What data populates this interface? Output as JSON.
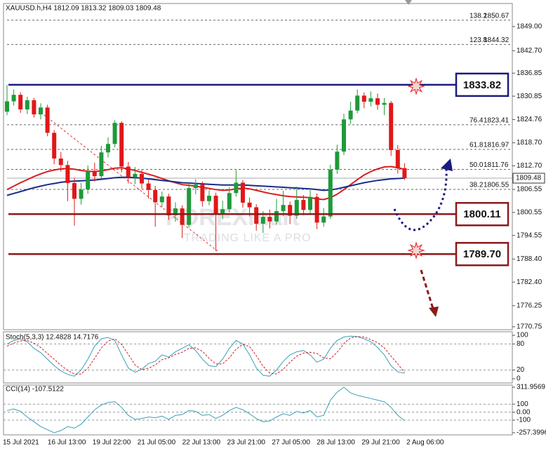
{
  "chart_data": [
    {
      "type": "candlestick",
      "title": "XAUUSD.h,H4  1812.09 1813.32 1809.03 1809.48",
      "ylim": [
        1770,
        1855
      ],
      "yticks": [
        {
          "value": 1849,
          "label": "1849.00"
        },
        {
          "value": 1842.7,
          "label": "1842.70"
        },
        1836.85,
        1830.85,
        1824.76,
        {
          "value": 1818.7,
          "label": "1818.70"
        },
        {
          "value": 1812.7,
          "label": "1812.70"
        },
        1806.55,
        1800.55,
        1794.55,
        {
          "value": 1788.4,
          "label": "1788.40"
        },
        {
          "value": 1782.4,
          "label": "1782.40"
        },
        1776.25,
        1770.75
      ],
      "time_labels": [
        "15 Jul 2021",
        "16 Jul 13:00",
        "19 Jul 22:00",
        "21 Jul 05:00",
        "22 Jul 13:00",
        "23 Jul 21:00",
        "27 Jul 05:00",
        "28 Jul 13:00",
        "29 Jul 21:00",
        "2 Aug 06:00"
      ],
      "up_color": "#1e9a3a",
      "down_color": "#e01818",
      "open": [
        1826.8,
        1829.5,
        1831.2,
        1827.4,
        1829.8,
        1826.1,
        1827.9,
        1821.3,
        1814.6,
        1812.9,
        1808.2,
        1804.1,
        1806.5,
        1811.3,
        1810.0,
        1816.2,
        1818.4,
        1823.9,
        1812.5,
        1809.8,
        1810.6,
        1808.1,
        1806.4,
        1803.2,
        1804.7,
        1799.8,
        1801.6,
        1797.3,
        1806.9,
        1807.8,
        1803.5,
        1804.9,
        1800.2,
        1801.4,
        1805.6,
        1808.3,
        1803.1,
        1801.9,
        1797.6,
        1799.4,
        1798.2,
        1800.9,
        1802.5,
        1799.7,
        1803.8,
        1801.2,
        1804.6,
        1797.9,
        1799.5,
        1811.7,
        1816.4,
        1824.8,
        1827.1,
        1831.0,
        1829.4,
        1830.3,
        1828.6,
        1829.1,
        1816.8,
        1812.09
      ],
      "high": [
        1833.8,
        1832.6,
        1831.9,
        1830.7,
        1830.4,
        1829.0,
        1828.6,
        1822.0,
        1816.3,
        1814.0,
        1809.6,
        1808.2,
        1812.8,
        1813.5,
        1817.9,
        1820.1,
        1824.6,
        1824.3,
        1813.7,
        1812.4,
        1811.8,
        1809.3,
        1807.5,
        1806.0,
        1805.4,
        1803.2,
        1802.4,
        1808.5,
        1809.2,
        1808.6,
        1806.3,
        1805.7,
        1803.6,
        1807.1,
        1811.6,
        1809.0,
        1804.4,
        1802.7,
        1800.9,
        1801.3,
        1804.1,
        1806.2,
        1803.4,
        1807.3,
        1805.1,
        1806.8,
        1805.5,
        1801.7,
        1813.0,
        1818.2,
        1826.3,
        1829.4,
        1832.6,
        1831.8,
        1832.1,
        1831.5,
        1830.4,
        1829.6,
        1818.1,
        1813.32
      ],
      "low": [
        1825.9,
        1828.4,
        1826.5,
        1826.2,
        1825.3,
        1824.8,
        1820.4,
        1813.1,
        1811.2,
        1803.5,
        1797.1,
        1802.6,
        1805.4,
        1808.6,
        1809.3,
        1814.9,
        1817.5,
        1811.0,
        1808.1,
        1807.9,
        1806.7,
        1804.2,
        1796.8,
        1801.9,
        1798.6,
        1798.1,
        1793.9,
        1796.6,
        1805.3,
        1802.1,
        1802.4,
        1790.5,
        1798.8,
        1800.5,
        1804.7,
        1801.8,
        1799.5,
        1795.8,
        1795.2,
        1796.4,
        1797.3,
        1799.6,
        1797.5,
        1798.9,
        1799.8,
        1800.3,
        1796.2,
        1796.8,
        1798.9,
        1810.6,
        1815.5,
        1823.6,
        1826.4,
        1827.7,
        1828.2,
        1827.3,
        1825.9,
        1815.3,
        1810.7,
        1809.03
      ],
      "close": [
        1829.5,
        1831.2,
        1827.4,
        1829.8,
        1826.1,
        1827.9,
        1821.3,
        1814.6,
        1812.9,
        1808.2,
        1804.1,
        1806.5,
        1811.3,
        1810.0,
        1816.2,
        1818.4,
        1823.9,
        1812.5,
        1809.8,
        1810.6,
        1808.1,
        1806.4,
        1803.2,
        1804.7,
        1799.8,
        1801.6,
        1797.3,
        1806.9,
        1807.8,
        1803.5,
        1804.9,
        1800.2,
        1801.4,
        1805.6,
        1808.3,
        1803.1,
        1801.9,
        1797.6,
        1799.4,
        1798.2,
        1800.9,
        1802.5,
        1799.7,
        1803.8,
        1801.2,
        1804.6,
        1797.9,
        1799.5,
        1811.7,
        1816.4,
        1824.8,
        1827.1,
        1831.0,
        1829.4,
        1830.3,
        1828.6,
        1829.1,
        1816.8,
        1812.09,
        1809.48
      ],
      "series": [
        {
          "color": "#d81e1e",
          "values": [
            1806.5,
            1807.4,
            1808.3,
            1809.1,
            1809.9,
            1810.6,
            1811.2,
            1811.6,
            1811.9,
            1812.0,
            1811.8,
            1811.5,
            1811.3,
            1811.2,
            1811.4,
            1811.7,
            1812.1,
            1812.2,
            1811.9,
            1811.5,
            1811.0,
            1810.5,
            1810.0,
            1809.4,
            1808.8,
            1808.3,
            1807.8,
            1807.6,
            1807.4,
            1807.1,
            1806.8,
            1806.5,
            1806.3,
            1806.4,
            1806.7,
            1806.9,
            1806.7,
            1806.3,
            1805.9,
            1805.5,
            1805.2,
            1804.9,
            1804.7,
            1804.6,
            1804.5,
            1804.4,
            1804.1,
            1803.9,
            1804.4,
            1805.3,
            1806.5,
            1807.8,
            1809.1,
            1810.3,
            1811.2,
            1811.9,
            1812.4,
            1812.5,
            1812.2,
            1811.8
          ]
        },
        {
          "color": "#1a2a8c",
          "values": [
            1805.0,
            1805.5,
            1806.0,
            1806.5,
            1807.0,
            1807.4,
            1807.8,
            1808.1,
            1808.4,
            1808.6,
            1808.7,
            1808.8,
            1808.9,
            1809.0,
            1809.2,
            1809.4,
            1809.6,
            1809.7,
            1809.7,
            1809.6,
            1809.5,
            1809.3,
            1809.1,
            1808.9,
            1808.7,
            1808.5,
            1808.3,
            1808.2,
            1808.1,
            1808.0,
            1807.9,
            1807.8,
            1807.7,
            1807.7,
            1807.7,
            1807.7,
            1807.6,
            1807.5,
            1807.4,
            1807.3,
            1807.2,
            1807.1,
            1807.0,
            1806.9,
            1806.8,
            1806.7,
            1806.5,
            1806.3,
            1806.4,
            1806.7,
            1807.1,
            1807.5,
            1807.9,
            1808.3,
            1808.6,
            1808.9,
            1809.1,
            1809.3,
            1809.4,
            1809.5
          ]
        }
      ],
      "fib_levels": [
        {
          "ratio": "138.2",
          "price": 1850.67
        },
        {
          "ratio": "123.8",
          "price": 1844.32
        },
        {
          "ratio": "76.4",
          "price": 1823.41
        },
        {
          "ratio": "61.8",
          "price": 1816.97
        },
        {
          "ratio": "50.0",
          "price": 1811.76
        },
        {
          "ratio": "38.2",
          "price": 1806.55
        }
      ],
      "key_levels": [
        {
          "price": 1833.82,
          "color": "#1a1a80"
        },
        {
          "price": 1800.11,
          "color": "#8b1a1a"
        },
        {
          "price": {
            "value": 1789.7,
            "label": "1789.70"
          },
          "color": "#8b1a1a"
        }
      ],
      "last_price": 1809.48,
      "watermark": {
        "brand": "FOREXmart",
        "tagline": "TRADING LIKE A PRO"
      }
    },
    {
      "type": "line",
      "title": "Stoch(5,3,3) 12.4828 14.7176",
      "ylim": [
        0,
        100
      ],
      "yticks": [
        100,
        80,
        20,
        0
      ],
      "series": [
        {
          "color": "#3b9fb5",
          "values": [
            80,
            88,
            92,
            85,
            70,
            60,
            45,
            30,
            18,
            10,
            6,
            20,
            45,
            75,
            92,
            95,
            88,
            55,
            25,
            15,
            22,
            35,
            40,
            55,
            50,
            62,
            70,
            78,
            65,
            45,
            30,
            28,
            45,
            70,
            88,
            80,
            55,
            25,
            8,
            6,
            20,
            40,
            55,
            62,
            65,
            55,
            38,
            45,
            70,
            88,
            96,
            98,
            97,
            92,
            85,
            72,
            55,
            30,
            16,
            12.4828
          ]
        },
        {
          "color": "#d02020",
          "dashed": true,
          "values": [
            75,
            82,
            87,
            88,
            82,
            72,
            58,
            45,
            31,
            19,
            11,
            11,
            24,
            47,
            71,
            87,
            92,
            79,
            56,
            32,
            21,
            24,
            32,
            44,
            48,
            56,
            61,
            70,
            71,
            63,
            47,
            34,
            34,
            48,
            68,
            79,
            74,
            53,
            29,
            13,
            11,
            22,
            38,
            52,
            59,
            61,
            58,
            48,
            46,
            61,
            81,
            94,
            97,
            96,
            90,
            83,
            71,
            52,
            34,
            14.7176
          ]
        }
      ]
    },
    {
      "type": "line",
      "title": "CCI(14) -107.5122",
      "ylim": [
        -257.3996,
        311.9569
      ],
      "yticks": [
        311.9569,
        100,
        {
          "value": 0,
          "label": "0.00"
        },
        -100,
        -257.3996
      ],
      "series": [
        {
          "color": "#3b9fb5",
          "values": [
            20,
            40,
            10,
            -60,
            -120,
            -180,
            -220,
            -257.3996,
            -230,
            -180,
            -200,
            -150,
            -60,
            30,
            90,
            120,
            130,
            60,
            -40,
            -90,
            -80,
            -60,
            -70,
            -50,
            -90,
            -40,
            -30,
            20,
            10,
            -40,
            -30,
            -80,
            -40,
            20,
            60,
            30,
            -20,
            -80,
            -120,
            -110,
            -60,
            -20,
            -40,
            10,
            -10,
            20,
            -60,
            -40,
            150,
            250,
            311.9569,
            240,
            210,
            190,
            170,
            150,
            130,
            60,
            -40,
            -107.5122
          ]
        }
      ]
    }
  ]
}
